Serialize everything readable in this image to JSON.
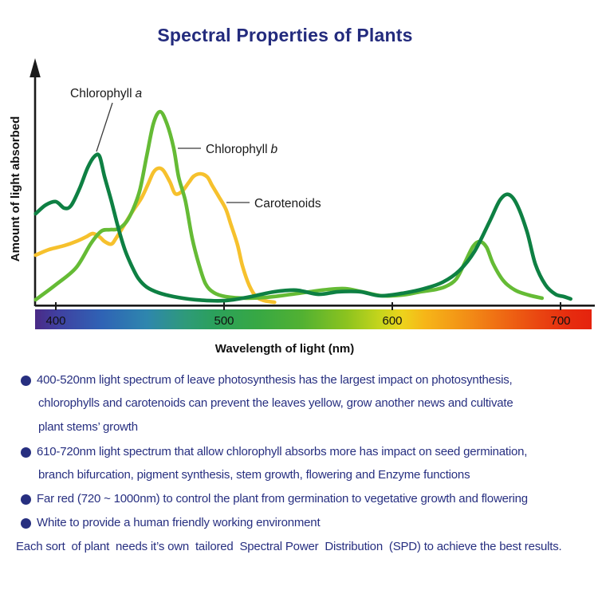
{
  "title": "Spectral Properties of Plants",
  "colors": {
    "title_text": "#232b7d",
    "note_text": "#272f80",
    "axis_black": "#1a1a1a",
    "chlorophyll_a": "#0e8043",
    "chlorophyll_b": "#65bb35",
    "carotenoids": "#f6c12d"
  },
  "chart_labels": {
    "chl_a": {
      "text": "Chlorophyll",
      "italic": "a"
    },
    "chl_b": {
      "text": "Chlorophyll",
      "italic": "b"
    },
    "carotenoids": "Carotenoids"
  },
  "chart_data": {
    "type": "line",
    "title": "Spectral Properties of Plants",
    "xlabel": "Wavelength of light (nm)",
    "ylabel": "Amount of light absorbed",
    "x_ticks": [
      400,
      500,
      600,
      700
    ],
    "x_range": [
      388,
      718
    ],
    "y_range": [
      0,
      1
    ],
    "grid": false,
    "legend_position": "inline-labels-with-leader-lines",
    "x_axis_style": "visible-spectrum-color-bar",
    "spectrum_gradient": [
      [
        0,
        "#4a2a86"
      ],
      [
        4,
        "#4040a0"
      ],
      [
        12,
        "#2f63b5"
      ],
      [
        20,
        "#2e86ae"
      ],
      [
        27,
        "#2e9a7a"
      ],
      [
        32,
        "#2ba05c"
      ],
      [
        40,
        "#37a844"
      ],
      [
        48,
        "#52b132"
      ],
      [
        56,
        "#8cc31f"
      ],
      [
        62,
        "#c6d51c"
      ],
      [
        66,
        "#edd31c"
      ],
      [
        70,
        "#f6b618"
      ],
      [
        78,
        "#f28c16"
      ],
      [
        85,
        "#ee6413"
      ],
      [
        91,
        "#e94311"
      ],
      [
        96,
        "#e62c0f"
      ],
      [
        100,
        "#e5230e"
      ]
    ],
    "series": [
      {
        "name": "Carotenoids",
        "color": "#f6c12d",
        "points": [
          [
            388,
            0.254
          ],
          [
            396,
            0.283
          ],
          [
            405,
            0.303
          ],
          [
            412,
            0.324
          ],
          [
            418,
            0.348
          ],
          [
            422,
            0.365
          ],
          [
            426,
            0.348
          ],
          [
            429,
            0.324
          ],
          [
            433,
            0.311
          ],
          [
            436,
            0.344
          ],
          [
            441,
            0.414
          ],
          [
            446,
            0.484
          ],
          [
            451,
            0.549
          ],
          [
            455,
            0.623
          ],
          [
            458,
            0.68
          ],
          [
            461,
            0.701
          ],
          [
            464,
            0.689
          ],
          [
            468,
            0.627
          ],
          [
            471,
            0.57
          ],
          [
            475,
            0.582
          ],
          [
            479,
            0.627
          ],
          [
            482,
            0.66
          ],
          [
            486,
            0.672
          ],
          [
            490,
            0.656
          ],
          [
            493,
            0.611
          ],
          [
            497,
            0.553
          ],
          [
            501,
            0.492
          ],
          [
            504,
            0.414
          ],
          [
            508,
            0.307
          ],
          [
            511,
            0.197
          ],
          [
            515,
            0.098
          ],
          [
            519,
            0.041
          ],
          [
            524,
            0.02
          ],
          [
            530,
            0.012
          ]
        ]
      },
      {
        "name": "Chlorophyll b",
        "color": "#65bb35",
        "points": [
          [
            388,
            0.025
          ],
          [
            400,
            0.102
          ],
          [
            412,
            0.189
          ],
          [
            421,
            0.316
          ],
          [
            427,
            0.377
          ],
          [
            432,
            0.385
          ],
          [
            437,
            0.389
          ],
          [
            442,
            0.426
          ],
          [
            446,
            0.492
          ],
          [
            450,
            0.59
          ],
          [
            454,
            0.762
          ],
          [
            458,
            0.93
          ],
          [
            462,
            0.992
          ],
          [
            466,
            0.93
          ],
          [
            470,
            0.807
          ],
          [
            473,
            0.656
          ],
          [
            477,
            0.533
          ],
          [
            481,
            0.344
          ],
          [
            485,
            0.209
          ],
          [
            489,
            0.107
          ],
          [
            494,
            0.061
          ],
          [
            501,
            0.041
          ],
          [
            513,
            0.033
          ],
          [
            525,
            0.037
          ],
          [
            537,
            0.049
          ],
          [
            551,
            0.066
          ],
          [
            562,
            0.078
          ],
          [
            572,
            0.082
          ],
          [
            582,
            0.066
          ],
          [
            594,
            0.045
          ],
          [
            606,
            0.049
          ],
          [
            617,
            0.066
          ],
          [
            626,
            0.078
          ],
          [
            632,
            0.094
          ],
          [
            638,
            0.131
          ],
          [
            643,
            0.213
          ],
          [
            648,
            0.299
          ],
          [
            652,
            0.324
          ],
          [
            656,
            0.295
          ],
          [
            660,
            0.209
          ],
          [
            666,
            0.123
          ],
          [
            673,
            0.074
          ],
          [
            681,
            0.049
          ],
          [
            689,
            0.033
          ]
        ]
      },
      {
        "name": "Chlorophyll a",
        "color": "#0e8043",
        "points": [
          [
            388,
            0.467
          ],
          [
            394,
            0.512
          ],
          [
            400,
            0.529
          ],
          [
            405,
            0.496
          ],
          [
            409,
            0.508
          ],
          [
            414,
            0.594
          ],
          [
            419,
            0.705
          ],
          [
            423,
            0.762
          ],
          [
            426,
            0.762
          ],
          [
            429,
            0.656
          ],
          [
            433,
            0.533
          ],
          [
            437,
            0.398
          ],
          [
            441,
            0.283
          ],
          [
            445,
            0.201
          ],
          [
            449,
            0.135
          ],
          [
            454,
            0.09
          ],
          [
            461,
            0.061
          ],
          [
            470,
            0.041
          ],
          [
            483,
            0.025
          ],
          [
            500,
            0.02
          ],
          [
            516,
            0.041
          ],
          [
            530,
            0.066
          ],
          [
            543,
            0.074
          ],
          [
            556,
            0.053
          ],
          [
            568,
            0.066
          ],
          [
            581,
            0.066
          ],
          [
            593,
            0.045
          ],
          [
            608,
            0.061
          ],
          [
            619,
            0.082
          ],
          [
            630,
            0.115
          ],
          [
            640,
            0.176
          ],
          [
            649,
            0.275
          ],
          [
            658,
            0.43
          ],
          [
            664,
            0.537
          ],
          [
            669,
            0.566
          ],
          [
            674,
            0.516
          ],
          [
            680,
            0.377
          ],
          [
            685,
            0.209
          ],
          [
            691,
            0.102
          ],
          [
            697,
            0.053
          ],
          [
            702,
            0.041
          ],
          [
            706,
            0.029
          ]
        ]
      }
    ]
  },
  "notes": {
    "bullets": [
      {
        "lines": [
          "400-520nm light spectrum of leave photosynthesis has the largest impact on photosynthesis,",
          "chlorophylls and carotenoids can prevent the leaves yellow, grow another news and cultivate",
          "plant stems’ growth"
        ]
      },
      {
        "lines": [
          "610-720nm light spectrum that allow chlorophyll absorbs more has impact on seed germination,",
          "branch bifurcation, pigment synthesis, stem growth, flowering and Enzyme functions"
        ]
      },
      {
        "lines": [
          "Far red (720 ~ 1000nm) to control the plant from germination to vegetative growth and flowering"
        ]
      },
      {
        "lines": [
          "White to provide a human friendly working environment"
        ]
      }
    ],
    "footer": "Each sort  of plant  needs it’s own  tailored  Spectral Power  Distribution  (SPD) to achieve the best results."
  }
}
